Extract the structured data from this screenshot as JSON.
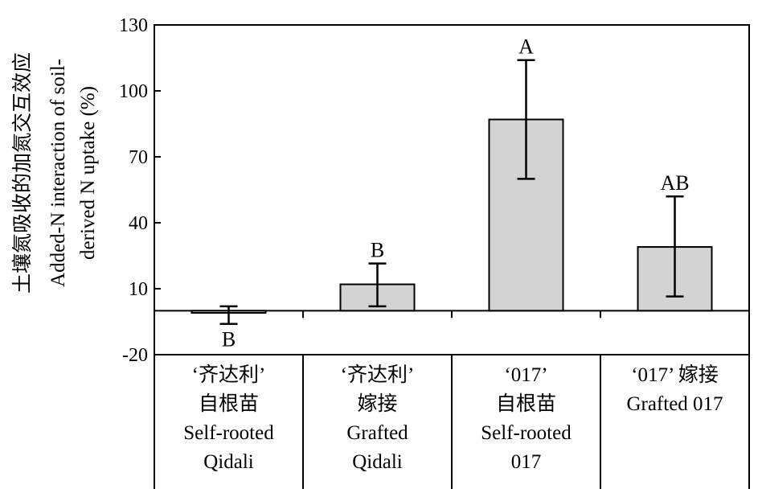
{
  "chart_data": {
    "type": "bar",
    "title": "",
    "ylabel_lines": [
      "土壤氮吸收的加氮交互效应",
      "Added-N interaction of soil-",
      "derived N uptake (%)"
    ],
    "ylim": [
      -20,
      130
    ],
    "yticks": [
      "130",
      "100",
      "70",
      "40",
      "10",
      "-20"
    ],
    "ytick_values": [
      130,
      100,
      70,
      40,
      10,
      -20
    ],
    "categories": [
      [
        "‘齐达利’",
        "自根苗",
        "Self-rooted",
        "Qidali"
      ],
      [
        "‘齐达利’",
        "嫁接",
        "Grafted",
        "Qidali"
      ],
      [
        "‘017’",
        "自根苗",
        "Self-rooted",
        "017"
      ],
      [
        "‘017’ 嫁接",
        "Grafted 017"
      ]
    ],
    "values": [
      -1,
      12,
      87,
      29
    ],
    "error_low": [
      -6,
      2,
      60,
      6.5
    ],
    "error_high": [
      2,
      21.5,
      114,
      52
    ],
    "significance": [
      "B",
      "B",
      "A",
      "AB"
    ],
    "bar_color": "#d3d3d3",
    "grid": false,
    "legend": "none"
  }
}
